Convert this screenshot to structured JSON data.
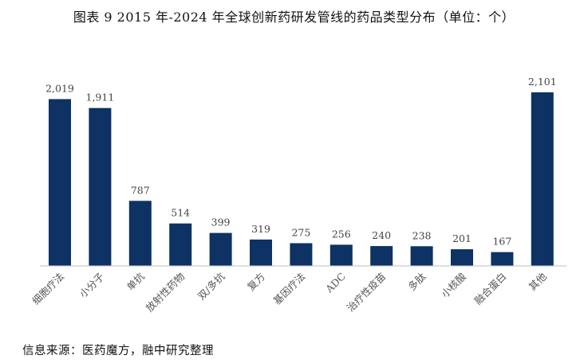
{
  "title": "图表 9 2015 年-2024 年全球创新药研发管线的药品类型分布（单位：个）",
  "source": "信息来源：医药魔方，融中研究整理",
  "chart_data": {
    "type": "bar",
    "categories": [
      "细胞疗法",
      "小分子",
      "单抗",
      "放射性药物",
      "双/多抗",
      "复方",
      "基因疗法",
      "ADC",
      "治疗性疫苗",
      "多肽",
      "小核酸",
      "融合蛋白",
      "其他"
    ],
    "values": [
      2019,
      1911,
      787,
      514,
      399,
      319,
      275,
      256,
      240,
      238,
      201,
      167,
      2101
    ],
    "value_labels": [
      "2,019",
      "1,911",
      "787",
      "514",
      "399",
      "319",
      "275",
      "256",
      "240",
      "238",
      "201",
      "167",
      "2,101"
    ],
    "xlabel": "",
    "ylabel": "",
    "ylim": [
      0,
      2101
    ],
    "grid": false,
    "legend": "none",
    "bar_color": "#0d3263"
  }
}
